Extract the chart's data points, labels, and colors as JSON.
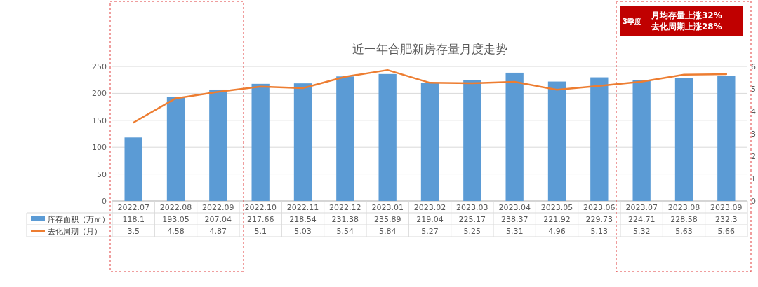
{
  "chart_data": {
    "type": "bar",
    "title": "近一年合肥新房存量月度走势",
    "categories": [
      "2022.07",
      "2022.08",
      "2022.09",
      "2022.10",
      "2022.11",
      "2022.12",
      "2023.01",
      "2023.02",
      "2023.03",
      "2023.04",
      "2023.05",
      "2023.06",
      "2023.07",
      "2023.08",
      "2023.09"
    ],
    "series": [
      {
        "name": "库存面积（万㎡）",
        "color": "#5b9bd5",
        "values": [
          118.1,
          193.05,
          207.04,
          217.66,
          218.54,
          231.38,
          235.89,
          219.04,
          225.17,
          238.37,
          221.92,
          229.73,
          224.71,
          228.58,
          232.3
        ]
      },
      {
        "name": "去化周期（月）",
        "type": "line",
        "axis": "y2",
        "color": "#ed7d31",
        "marker": "none",
        "values": [
          3.5,
          4.58,
          4.87,
          5.1,
          5.03,
          5.54,
          5.84,
          5.27,
          5.25,
          5.31,
          4.96,
          5.13,
          5.32,
          5.63,
          5.66
        ]
      }
    ],
    "ylim": [
      0,
      250
    ],
    "yticks": [
      0,
      50,
      100,
      150,
      200,
      250
    ],
    "y2lim": [
      0,
      6
    ],
    "y2ticks": [
      0,
      1,
      2,
      3,
      4,
      5,
      6
    ],
    "grid": "y",
    "legend": "bottom left",
    "data_labels": true,
    "annotations": [
      "3季度",
      "月均存量上涨32%",
      "去化周期上涨28%"
    ]
  }
}
